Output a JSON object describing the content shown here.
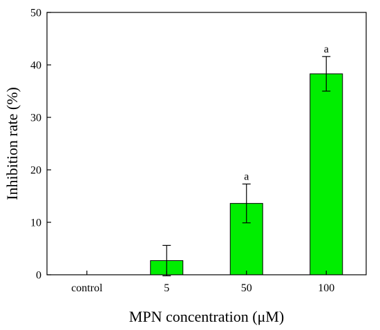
{
  "chart_data": {
    "type": "bar",
    "categories": [
      "control",
      "5",
      "50",
      "100"
    ],
    "values": [
      0,
      2.7,
      13.6,
      38.3
    ],
    "errors": [
      0,
      2.9,
      3.7,
      3.3
    ],
    "annotations": [
      "",
      "",
      "a",
      "a"
    ],
    "xlabel": "MPN concentration (μM)",
    "ylabel": "Inhibition rate (%)",
    "ylim": [
      0,
      50
    ],
    "yticks": [
      0,
      10,
      20,
      30,
      40,
      50
    ],
    "grid": false,
    "bar_color": "#00ee00",
    "edge_color": "#000000"
  }
}
